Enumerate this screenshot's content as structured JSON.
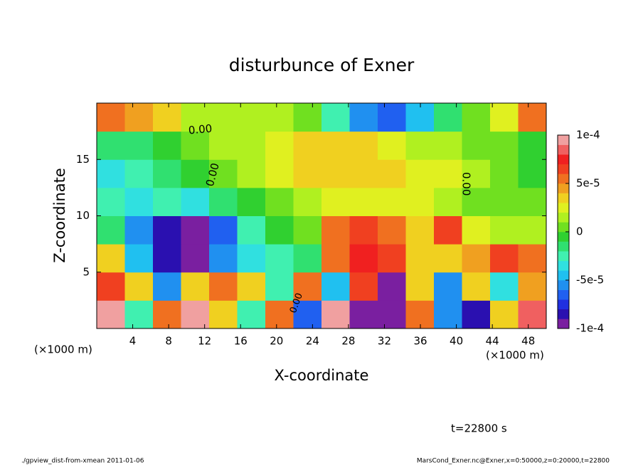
{
  "chart_data": {
    "type": "heatmap",
    "title": "disturbunce of Exner",
    "x_label": "X-coordinate",
    "y_label": "Z-coordinate",
    "x_unit": "(×1000 m)",
    "y_unit": "(×1000 m)",
    "time_label": "t=22800 s",
    "footer_left": "./gpview_dist-from-xmean  2011-01-06",
    "footer_right": "MarsCond_Exner.nc@Exner,x=0:50000,z=0:20000,t=22800",
    "contour_labels": [
      "0.00",
      "0.00",
      "0.00",
      "0.00"
    ],
    "xlim": [
      0,
      50
    ],
    "ylim": [
      0,
      20
    ],
    "xticks": [
      4,
      8,
      12,
      16,
      20,
      24,
      28,
      32,
      36,
      40,
      44,
      48
    ],
    "yticks": [
      5,
      10,
      15
    ],
    "clim": [
      -0.0001,
      0.0001
    ],
    "cticks": [
      {
        "value": 0.0001,
        "label": "1e-4"
      },
      {
        "value": 5e-05,
        "label": "5e-5"
      },
      0,
      {
        "value": -5e-05,
        "label": "-5e-5"
      },
      {
        "value": -0.0001,
        "label": "-1e-4"
      }
    ],
    "colormap": [
      "#7a1fa0",
      "#2a10b0",
      "#2030e0",
      "#2060f0",
      "#2090f0",
      "#20c0f0",
      "#30e0e0",
      "#40f0b0",
      "#30e070",
      "#30d030",
      "#70e020",
      "#b0f020",
      "#e0f020",
      "#f0d020",
      "#f0a020",
      "#f07020",
      "#f04020",
      "#f02020",
      "#f06060",
      "#f0a0a0"
    ],
    "x": [
      1.5625,
      4.6875,
      7.8125,
      10.9375,
      14.0625,
      17.1875,
      20.3125,
      23.4375,
      26.5625,
      29.6875,
      32.8125,
      35.9375,
      39.0625,
      42.1875,
      45.3125,
      48.4375
    ],
    "y": [
      1.25,
      3.75,
      6.25,
      8.75,
      11.25,
      13.75,
      16.25,
      18.75
    ],
    "values": [
      [
        9e-05,
        -3e-05,
        5e-05,
        9e-05,
        3e-05,
        -3e-05,
        5e-05,
        -7e-05,
        9e-05,
        -9e-05,
        -0.0001,
        5e-05,
        -6e-05,
        -8e-05,
        3e-05,
        8e-05
      ],
      [
        6e-05,
        3e-05,
        -6e-05,
        3e-05,
        5e-05,
        3e-05,
        -3e-05,
        5e-05,
        -5e-05,
        6e-05,
        -9e-05,
        3e-05,
        -6e-05,
        3e-05,
        -4e-05,
        4e-05
      ],
      [
        3e-05,
        -5e-05,
        -8e-05,
        -9e-05,
        -6e-05,
        -4e-05,
        -3e-05,
        -2e-05,
        5e-05,
        7e-05,
        6e-05,
        3e-05,
        3e-05,
        4e-05,
        6e-05,
        5e-05
      ],
      [
        -2e-05,
        -6e-05,
        -8e-05,
        -9e-05,
        -7e-05,
        -3e-05,
        -1e-05,
        0,
        5e-05,
        6e-05,
        5e-05,
        3e-05,
        6e-05,
        2e-05,
        1e-05,
        1e-05
      ],
      [
        -3e-05,
        -4e-05,
        -3e-05,
        -4e-05,
        -2e-05,
        -1e-05,
        0,
        1e-05,
        2e-05,
        2e-05,
        2e-05,
        2e-05,
        1e-05,
        0,
        0,
        0
      ],
      [
        -4e-05,
        -3e-05,
        -2e-05,
        -1e-05,
        0,
        1e-05,
        2e-05,
        3e-05,
        3e-05,
        3e-05,
        3e-05,
        2e-05,
        2e-05,
        1e-05,
        0,
        -1e-05
      ],
      [
        -2e-05,
        -2e-05,
        -1e-05,
        0,
        1e-05,
        1e-05,
        2e-05,
        3e-05,
        3e-05,
        3e-05,
        2e-05,
        1e-05,
        1e-05,
        0,
        0,
        -1e-05
      ],
      [
        5e-05,
        4e-05,
        3e-05,
        1e-05,
        1e-05,
        1e-05,
        1e-05,
        0,
        -3e-05,
        -6e-05,
        -7e-05,
        -5e-05,
        -2e-05,
        0,
        2e-05,
        5e-05
      ]
    ]
  }
}
